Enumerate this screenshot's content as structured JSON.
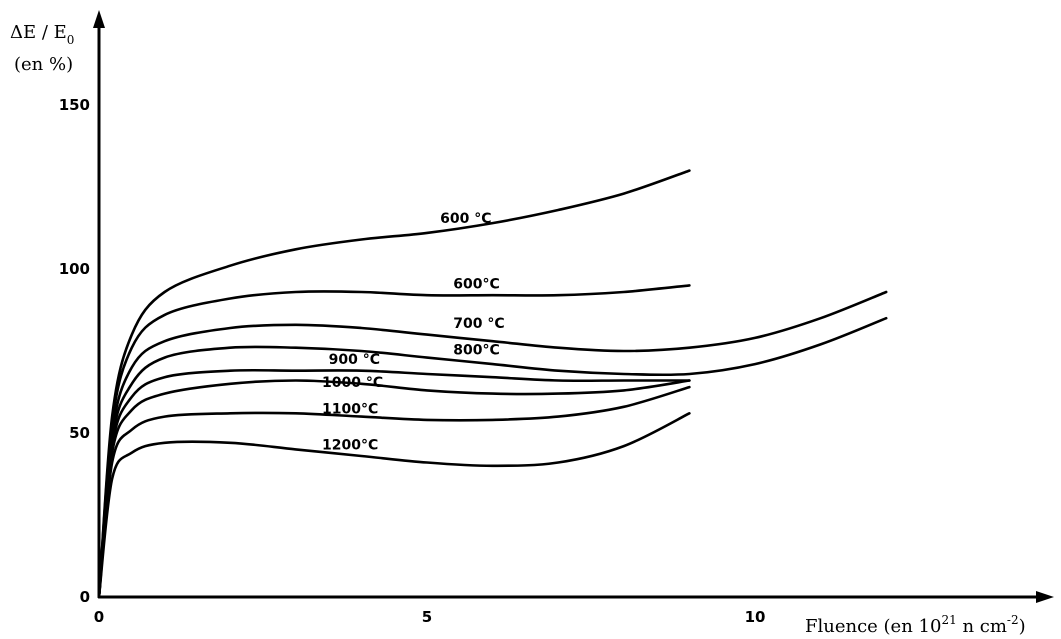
{
  "chart_data": {
    "type": "line",
    "title": "",
    "ylabel_line1": {
      "main": "ΔE / E",
      "sub": "0"
    },
    "ylabel_line2": "(en %)",
    "xlabel": {
      "pre": "Fluence (en 10",
      "sup1": "21",
      "mid": " n cm",
      "sup2": "-2",
      "post": ")"
    },
    "xlim": [
      0,
      12
    ],
    "ylim": [
      0,
      150
    ],
    "xticks": [
      0,
      5,
      10
    ],
    "xtick_labels": [
      "0",
      "5",
      "10"
    ],
    "yticks": [
      0,
      50,
      100,
      150
    ],
    "ytick_labels": [
      "0",
      "50",
      "100",
      "150"
    ],
    "grid": false,
    "legend": "none",
    "series": [
      {
        "name": "600 °C",
        "label_at": [
          5.2,
          114
        ],
        "x": [
          0,
          0.2,
          0.5,
          1,
          2,
          3,
          4,
          5,
          6,
          7,
          8,
          9
        ],
        "y": [
          0,
          55,
          80,
          93,
          101,
          106,
          109,
          111,
          114,
          118,
          123,
          130
        ]
      },
      {
        "name": "600°C",
        "label_at": [
          5.4,
          94
        ],
        "x": [
          0,
          0.2,
          0.5,
          1,
          2,
          3,
          4,
          5,
          6,
          7,
          8,
          9
        ],
        "y": [
          0,
          53,
          76,
          86,
          91,
          93,
          93,
          92,
          92,
          92,
          93,
          95
        ]
      },
      {
        "name": "700 °C",
        "label_at": [
          5.4,
          82
        ],
        "x": [
          0,
          0.2,
          0.5,
          1,
          2,
          3,
          4,
          5,
          6,
          7,
          8,
          9,
          10,
          11,
          12
        ],
        "y": [
          0,
          50,
          70,
          78,
          82,
          83,
          82,
          80,
          78,
          76,
          75,
          76,
          79,
          85,
          93
        ]
      },
      {
        "name": "800°C",
        "label_at": [
          5.4,
          74
        ],
        "x": [
          0,
          0.2,
          0.5,
          1,
          2,
          3,
          4,
          5,
          6,
          7,
          8,
          9,
          10,
          11,
          12
        ],
        "y": [
          0,
          48,
          65,
          73,
          76,
          76,
          75,
          73,
          71,
          69,
          68,
          68,
          71,
          77,
          85
        ]
      },
      {
        "name": "900 °C",
        "label_at": [
          3.5,
          71
        ],
        "x": [
          0,
          0.2,
          0.5,
          1,
          2,
          3,
          4,
          5,
          6,
          7,
          8,
          9
        ],
        "y": [
          0,
          46,
          61,
          67,
          69,
          69,
          69,
          68,
          67,
          66,
          66,
          66
        ]
      },
      {
        "name": "1000 °C",
        "label_at": [
          3.4,
          64
        ],
        "x": [
          0,
          0.2,
          0.5,
          1,
          2,
          3,
          4,
          5,
          6,
          7,
          8,
          9
        ],
        "y": [
          0,
          44,
          57,
          62,
          65,
          66,
          65,
          63,
          62,
          62,
          63,
          66
        ]
      },
      {
        "name": "1100°C",
        "label_at": [
          3.4,
          56
        ],
        "x": [
          0,
          0.2,
          0.5,
          1,
          2,
          3,
          4,
          5,
          6,
          7,
          8,
          9
        ],
        "y": [
          0,
          41,
          51,
          55,
          56,
          56,
          55,
          54,
          54,
          55,
          58,
          64
        ]
      },
      {
        "name": "1200°C",
        "label_at": [
          3.4,
          45
        ],
        "x": [
          0,
          0.2,
          0.5,
          1,
          2,
          3,
          4,
          5,
          6,
          7,
          8,
          9
        ],
        "y": [
          0,
          36,
          44,
          47,
          47,
          45,
          43,
          41,
          40,
          41,
          46,
          56
        ]
      }
    ]
  }
}
